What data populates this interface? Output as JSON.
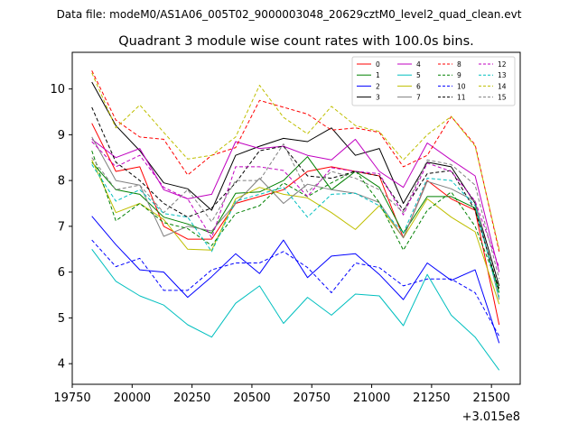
{
  "chart_data": {
    "type": "line",
    "suptitle": "Data file: modeM0/AS1A06_005T02_9000003048_20629cztM0_level2_quad_clean.evt",
    "title": "Quadrant 3 module wise count rates with 100.0s bins.",
    "xlabel": "",
    "ylabel": "",
    "x_offset_label": "+3.015e8",
    "xlim": [
      19750,
      21620
    ],
    "ylim": [
      3.55,
      10.8
    ],
    "xticks": [
      19750,
      20000,
      20250,
      20500,
      20750,
      21000,
      21250,
      21500
    ],
    "xtick_labels": [
      "19750",
      "20000",
      "20250",
      "20500",
      "20750",
      "21000",
      "21250",
      "21500"
    ],
    "yticks": [
      4,
      5,
      6,
      7,
      8,
      9,
      10
    ],
    "ytick_labels": [
      "4",
      "5",
      "6",
      "7",
      "8",
      "9",
      "10"
    ],
    "legend_position": "top-right",
    "x": [
      19832,
      19932,
      20032,
      20132,
      20232,
      20332,
      20432,
      20532,
      20632,
      20732,
      20832,
      20932,
      21032,
      21132,
      21232,
      21332,
      21432,
      21532
    ],
    "series": [
      {
        "name": "0",
        "color": "#ff0000",
        "dash": "solid",
        "values": [
          9.25,
          8.2,
          8.3,
          7.0,
          6.72,
          6.72,
          7.5,
          7.65,
          7.8,
          8.2,
          8.3,
          8.2,
          8.1,
          6.75,
          8.0,
          7.6,
          7.35,
          4.85
        ]
      },
      {
        "name": "1",
        "color": "#008000",
        "dash": "solid",
        "values": [
          8.4,
          7.8,
          7.7,
          7.2,
          7.05,
          6.85,
          7.72,
          7.75,
          8.0,
          8.52,
          7.8,
          8.2,
          7.85,
          6.85,
          7.65,
          7.65,
          7.4,
          5.55
        ]
      },
      {
        "name": "2",
        "color": "#0000ff",
        "dash": "solid",
        "values": [
          7.22,
          6.6,
          6.05,
          6.0,
          5.45,
          5.9,
          6.4,
          5.97,
          6.7,
          5.88,
          6.35,
          6.4,
          5.95,
          5.4,
          6.2,
          5.82,
          6.05,
          4.45
        ]
      },
      {
        "name": "3",
        "color": "#000000",
        "dash": "solid",
        "values": [
          10.15,
          9.2,
          8.65,
          7.95,
          7.82,
          7.35,
          8.55,
          8.75,
          8.92,
          8.85,
          9.15,
          8.55,
          8.7,
          7.5,
          8.4,
          8.3,
          7.5,
          5.7
        ]
      },
      {
        "name": "4",
        "color": "#c000c0",
        "dash": "solid",
        "values": [
          8.9,
          8.5,
          8.7,
          7.8,
          7.6,
          7.7,
          8.85,
          8.7,
          8.75,
          8.55,
          8.45,
          8.9,
          8.2,
          7.85,
          8.82,
          8.45,
          8.1,
          6.0
        ]
      },
      {
        "name": "5",
        "color": "#00bfbf",
        "dash": "solid",
        "values": [
          6.5,
          5.8,
          5.48,
          5.28,
          4.85,
          4.58,
          5.32,
          5.7,
          4.88,
          5.45,
          5.06,
          5.52,
          5.48,
          4.83,
          5.95,
          5.06,
          4.58,
          3.86
        ]
      },
      {
        "name": "6",
        "color": "#bfbf00",
        "dash": "solid",
        "values": [
          8.45,
          7.3,
          7.5,
          7.15,
          6.5,
          6.48,
          7.6,
          7.85,
          7.7,
          7.62,
          7.3,
          6.93,
          7.45,
          6.75,
          7.6,
          7.2,
          6.88,
          5.3
        ]
      },
      {
        "name": "7",
        "color": "#808080",
        "dash": "solid",
        "values": [
          8.95,
          8.0,
          7.9,
          6.78,
          7.0,
          6.9,
          7.5,
          8.05,
          7.5,
          7.92,
          7.8,
          7.72,
          7.52,
          6.75,
          7.98,
          7.82,
          7.55,
          5.4
        ]
      },
      {
        "name": "8",
        "color": "#ff0000",
        "dash": "dashed",
        "values": [
          10.4,
          9.32,
          8.95,
          8.9,
          8.12,
          8.55,
          8.72,
          9.75,
          9.6,
          9.45,
          9.1,
          9.15,
          9.05,
          8.3,
          8.55,
          9.4,
          8.78,
          6.45
        ]
      },
      {
        "name": "9",
        "color": "#008000",
        "dash": "dashed",
        "values": [
          8.65,
          7.12,
          7.5,
          7.08,
          6.95,
          6.58,
          7.28,
          7.45,
          7.95,
          7.65,
          7.95,
          8.22,
          7.52,
          6.48,
          7.35,
          7.75,
          7.0,
          5.65
        ]
      },
      {
        "name": "10",
        "color": "#0000ff",
        "dash": "dashed",
        "values": [
          6.7,
          6.12,
          6.3,
          5.6,
          5.6,
          6.05,
          6.2,
          6.2,
          6.45,
          6.1,
          5.55,
          6.2,
          6.1,
          5.7,
          5.85,
          5.85,
          5.55,
          4.6
        ]
      },
      {
        "name": "11",
        "color": "#000000",
        "dash": "dashed",
        "values": [
          9.6,
          8.4,
          8.0,
          7.5,
          7.2,
          7.4,
          7.95,
          8.65,
          8.75,
          8.1,
          8.05,
          8.2,
          8.1,
          7.35,
          8.15,
          8.22,
          7.35,
          5.6
        ]
      },
      {
        "name": "12",
        "color": "#c000c0",
        "dash": "dashed",
        "values": [
          8.85,
          8.3,
          8.55,
          7.85,
          7.6,
          6.75,
          8.3,
          8.3,
          8.22,
          7.65,
          8.28,
          8.2,
          8.15,
          7.25,
          8.38,
          8.2,
          7.55,
          6.1
        ]
      },
      {
        "name": "13",
        "color": "#00bfbf",
        "dash": "dashed",
        "values": [
          8.35,
          7.55,
          7.8,
          7.28,
          7.2,
          6.45,
          7.55,
          7.7,
          7.85,
          7.2,
          7.7,
          7.72,
          7.45,
          6.85,
          8.05,
          8.0,
          7.45,
          5.45
        ]
      },
      {
        "name": "14",
        "color": "#bfbf00",
        "dash": "dashed",
        "values": [
          10.35,
          9.15,
          9.65,
          9.05,
          8.47,
          8.55,
          8.95,
          10.08,
          9.38,
          9.02,
          9.62,
          9.2,
          9.07,
          8.45,
          9.0,
          9.4,
          8.75,
          6.5
        ]
      },
      {
        "name": "15",
        "color": "#808080",
        "dash": "dashed",
        "values": [
          8.5,
          7.8,
          7.9,
          7.3,
          7.8,
          7.1,
          8.0,
          8.0,
          8.8,
          7.75,
          8.2,
          8.05,
          7.8,
          7.3,
          8.45,
          8.35,
          7.9,
          5.85
        ]
      }
    ]
  }
}
